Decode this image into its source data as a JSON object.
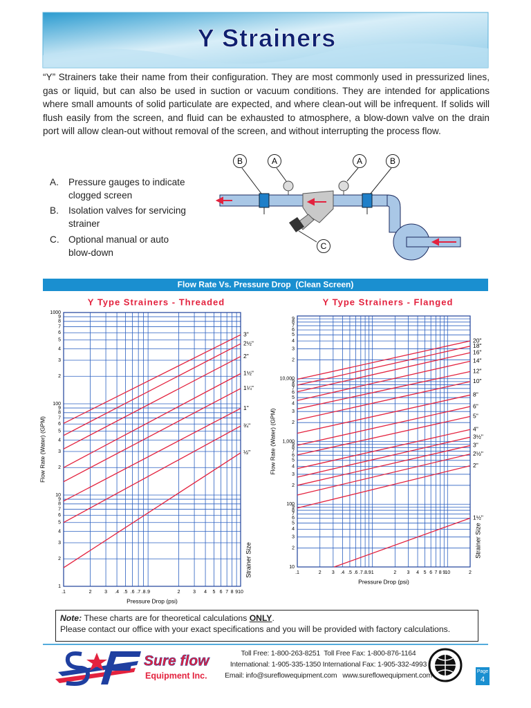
{
  "header": {
    "title": "Y Strainers"
  },
  "intro": "“Y” Strainers take their name from their configuration. They are most commonly used in pressurized lines, gas or liquid, but can also be used in suction or vacuum conditions. They are intended for applications where small amounts of solid particulate are expected, and where clean-out will be infrequent. If solids will flush easily from the screen, and fluid can be exhausted to atmosphere, a blow-down valve on the drain port will allow clean-out without removal of the screen, and without interrupting the process flow.",
  "features": [
    {
      "letter": "A.",
      "text": "Pressure gauges to indicate clogged screen"
    },
    {
      "letter": "B.",
      "text": "Isolation valves for servicing strainer"
    },
    {
      "letter": "C.",
      "text": "Optional manual or auto blow-down"
    }
  ],
  "diagram_labels": [
    "B",
    "A",
    "A",
    "B",
    "C"
  ],
  "section_title": "Flow Rate Vs. Pressure Drop  (Clean Screen)",
  "chart_data": [
    {
      "type": "line",
      "title": "Y Type Strainers - Threaded",
      "x_label": "Pressure Drop (psi)",
      "y_label": "Flow Rate (Water) (GPM)",
      "legend_title": "Strainer Size",
      "log_x": true,
      "log_y": true,
      "grid": true,
      "grid_color": "#2a5fc0",
      "xlim": [
        0.1,
        10
      ],
      "ylim": [
        1,
        1000
      ],
      "xticks": [
        {
          "value": 0.1,
          "label": ".1"
        },
        {
          "value": 0.2,
          "label": "2"
        },
        {
          "value": 0.3,
          "label": "3"
        },
        {
          "value": 0.4,
          "label": ".4"
        },
        {
          "value": 0.5,
          "label": ".5"
        },
        {
          "value": 0.6,
          "label": ".6"
        },
        {
          "value": 0.7,
          "label": ".7"
        },
        {
          "value": 0.8,
          "label": ".8"
        },
        {
          "value": 0.9,
          "label": ".9"
        },
        2,
        3,
        4,
        5,
        6,
        7,
        8,
        9,
        10
      ],
      "yticks": [
        1,
        2,
        3,
        4,
        5,
        6,
        7,
        8,
        9,
        10,
        {
          "value": 20,
          "label": "2"
        },
        {
          "value": 30,
          "label": "3"
        },
        {
          "value": 40,
          "label": "4"
        },
        {
          "value": 50,
          "label": "5"
        },
        {
          "value": 60,
          "label": "6"
        },
        {
          "value": 70,
          "label": "7"
        },
        {
          "value": 80,
          "label": "8"
        },
        {
          "value": 90,
          "label": "9"
        },
        100,
        {
          "value": 200,
          "label": "2"
        },
        {
          "value": 300,
          "label": "3"
        },
        {
          "value": 400,
          "label": "4"
        },
        {
          "value": 500,
          "label": "5"
        },
        {
          "value": 600,
          "label": "6"
        },
        {
          "value": 700,
          "label": "7"
        },
        {
          "value": 800,
          "label": "8"
        },
        {
          "value": 900,
          "label": "9"
        },
        1000
      ],
      "series": [
        {
          "name": "3\"",
          "color": "#e3223e",
          "x": [
            0.1,
            10
          ],
          "values": [
            61,
            570
          ]
        },
        {
          "name": "2½\"",
          "color": "#e3223e",
          "x": [
            0.1,
            10
          ],
          "values": [
            45,
            455
          ]
        },
        {
          "name": "2\"",
          "color": "#e3223e",
          "x": [
            0.1,
            10
          ],
          "values": [
            32,
            330
          ]
        },
        {
          "name": "1½\"",
          "color": "#e3223e",
          "x": [
            0.1,
            10
          ],
          "values": [
            20,
            214
          ]
        },
        {
          "name": "1¼\"",
          "color": "#e3223e",
          "x": [
            0.1,
            10
          ],
          "values": [
            14,
            147
          ]
        },
        {
          "name": "1\"",
          "color": "#e3223e",
          "x": [
            0.1,
            10
          ],
          "values": [
            8.6,
            89
          ]
        },
        {
          "name": "¾\"",
          "color": "#e3223e",
          "x": [
            0.1,
            10
          ],
          "values": [
            5,
            57
          ]
        },
        {
          "name": "½\"",
          "color": "#e3223e",
          "x": [
            0.1,
            10
          ],
          "values": [
            1.6,
            29
          ]
        }
      ]
    },
    {
      "type": "line",
      "title": "Y Type Strainers - Flanged",
      "x_label": "Pressure Drop (psi)",
      "y_label": "Flow Rate (Water) (GPM)",
      "legend_title": "Strainer Size",
      "log_x": true,
      "log_y": true,
      "grid": true,
      "grid_color": "#2a5fc0",
      "xlim": [
        0.1,
        20
      ],
      "ylim": [
        10,
        100000
      ],
      "xticks": [
        {
          "value": 0.1,
          "label": ".1"
        },
        {
          "value": 0.2,
          "label": "2"
        },
        {
          "value": 0.3,
          "label": "3"
        },
        {
          "value": 0.4,
          "label": ".4"
        },
        {
          "value": 0.5,
          "label": ".5"
        },
        {
          "value": 0.6,
          "label": ".6"
        },
        {
          "value": 0.7,
          "label": ".7"
        },
        {
          "value": 0.8,
          "label": ".8"
        },
        {
          "value": 0.9,
          "label": ".9"
        },
        1,
        2,
        3,
        4,
        5,
        6,
        7,
        8,
        9,
        10,
        {
          "value": 20,
          "label": "2"
        }
      ],
      "yticks": [
        10,
        {
          "value": 20,
          "label": "2"
        },
        {
          "value": 30,
          "label": "3"
        },
        {
          "value": 40,
          "label": "4"
        },
        {
          "value": 50,
          "label": "5"
        },
        {
          "value": 60,
          "label": "6"
        },
        {
          "value": 70,
          "label": "7"
        },
        {
          "value": 80,
          "label": "8"
        },
        {
          "value": 90,
          "label": "9"
        },
        100,
        {
          "value": 200,
          "label": "2"
        },
        {
          "value": 300,
          "label": "3"
        },
        {
          "value": 400,
          "label": "4"
        },
        {
          "value": 500,
          "label": "5"
        },
        {
          "value": 600,
          "label": "6"
        },
        {
          "value": 700,
          "label": "7"
        },
        {
          "value": 800,
          "label": "8"
        },
        {
          "value": 900,
          "label": "9"
        },
        {
          "value": 1000,
          "label": "1,000"
        },
        {
          "value": 2000,
          "label": "2"
        },
        {
          "value": 3000,
          "label": "3"
        },
        {
          "value": 4000,
          "label": "4"
        },
        {
          "value": 5000,
          "label": "5"
        },
        {
          "value": 6000,
          "label": "6"
        },
        {
          "value": 7000,
          "label": "7"
        },
        {
          "value": 8000,
          "label": "8"
        },
        {
          "value": 9000,
          "label": "9"
        },
        {
          "value": 10000,
          "label": "10,000"
        },
        {
          "value": 20000,
          "label": "2"
        },
        {
          "value": 30000,
          "label": "3"
        },
        {
          "value": 40000,
          "label": "4"
        },
        {
          "value": 50000,
          "label": "5"
        },
        {
          "value": 60000,
          "label": "6"
        },
        {
          "value": 70000,
          "label": "7"
        },
        {
          "value": 80000,
          "label": "8"
        },
        {
          "value": 90000,
          "label": "9"
        }
      ],
      "series": [
        {
          "name": "20\"",
          "color": "#e3223e",
          "x": [
            0.1,
            20
          ],
          "values": [
            9800,
            40000
          ]
        },
        {
          "name": "18\"",
          "color": "#e3223e",
          "x": [
            0.1,
            20
          ],
          "values": [
            7900,
            33000
          ]
        },
        {
          "name": "16\"",
          "color": "#e3223e",
          "x": [
            0.1,
            20
          ],
          "values": [
            6200,
            26000
          ]
        },
        {
          "name": "14\"",
          "color": "#e3223e",
          "x": [
            0.1,
            20
          ],
          "values": [
            4500,
            19000
          ]
        },
        {
          "name": "12\"",
          "color": "#e3223e",
          "x": [
            0.1,
            20
          ],
          "values": [
            3300,
            13000
          ]
        },
        {
          "name": "10\"",
          "color": "#e3223e",
          "x": [
            0.1,
            20
          ],
          "values": [
            2200,
            9000
          ]
        },
        {
          "name": "8\"",
          "color": "#e3223e",
          "x": [
            0.1,
            20
          ],
          "values": [
            1350,
            5500
          ]
        },
        {
          "name": "6\"",
          "color": "#e3223e",
          "x": [
            0.1,
            20
          ],
          "values": [
            870,
            3600
          ]
        },
        {
          "name": "5\"",
          "color": "#e3223e",
          "x": [
            0.1,
            20
          ],
          "values": [
            610,
            2500
          ]
        },
        {
          "name": "4\"",
          "color": "#e3223e",
          "x": [
            0.1,
            20
          ],
          "values": [
            370,
            1550
          ]
        },
        {
          "name": "3½\"",
          "color": "#e3223e",
          "x": [
            0.1,
            20
          ],
          "values": [
            270,
            1170
          ]
        },
        {
          "name": "3\"",
          "color": "#e3223e",
          "x": [
            0.1,
            20
          ],
          "values": [
            200,
            860
          ]
        },
        {
          "name": "2½\"",
          "color": "#e3223e",
          "x": [
            0.1,
            20
          ],
          "values": [
            140,
            630
          ]
        },
        {
          "name": "2\"",
          "color": "#e3223e",
          "x": [
            0.1,
            20
          ],
          "values": [
            87,
            410
          ]
        },
        {
          "name": "1½\"",
          "color": "#e3223e",
          "x": [
            0.31,
            20
          ],
          "values": [
            10,
            60
          ]
        }
      ]
    }
  ],
  "note": {
    "label": "Note:",
    "text": "These charts are for theoretical calculations ",
    "emphasis": "ONLY",
    "end": ".",
    "line2": "Please contact our office with your exact specifications and you will be provided with factory calculations."
  },
  "footer": {
    "company": "Sure flow",
    "company_sub": "Equipment Inc.",
    "contact": [
      "Toll Free: 1-800-263-8251  Toll Free Fax: 1-800-876-1164",
      "International: 1-905-335-1350 International Fax: 1-905-332-4993",
      "Email: info@sureflowequipment.com   www.sureflowequipment.com"
    ],
    "page_label": "Page",
    "page_number": "4"
  }
}
